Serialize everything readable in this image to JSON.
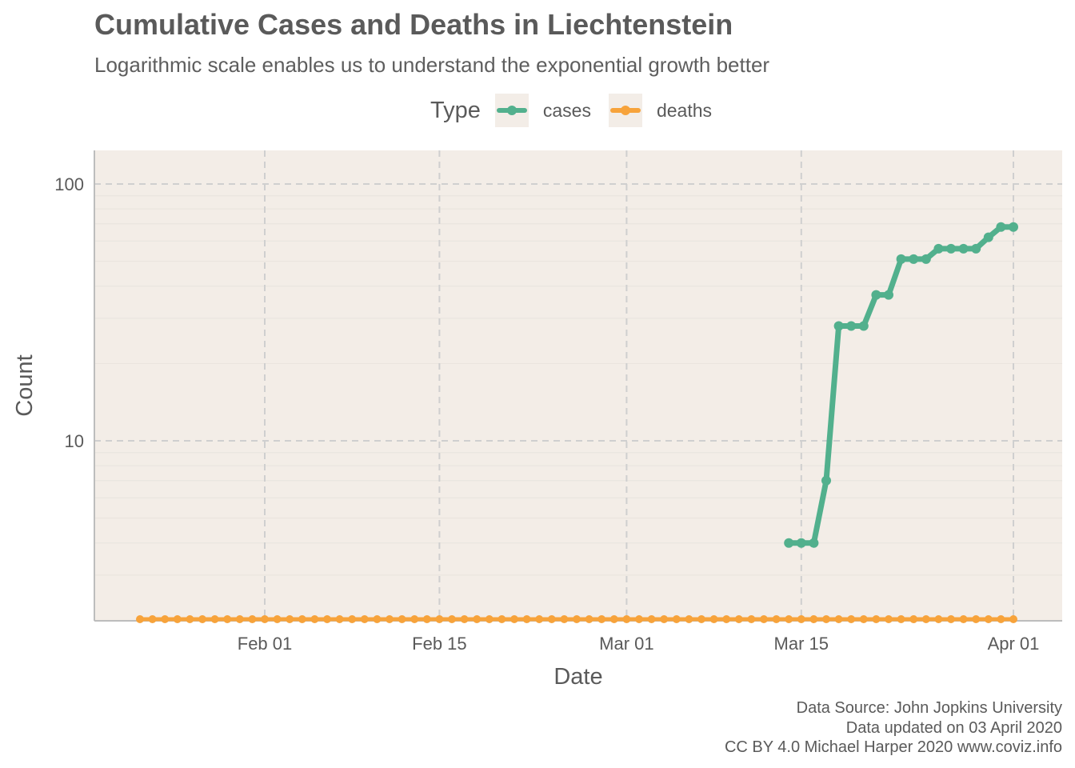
{
  "title": "Cumulative Cases and Deaths in Liechtenstein",
  "subtitle": "Logarithmic scale enables us to understand the exponential growth better",
  "legend": {
    "title": "Type",
    "items": [
      {
        "label": "cases",
        "color": "#52b08d"
      },
      {
        "label": "deaths",
        "color": "#f7a33b"
      }
    ]
  },
  "footer": {
    "line1": "Data Source: John Jopkins University",
    "line2": "Data updated on 03 April 2020",
    "line3": "CC BY 4.0 Michael Harper 2020 www.coviz.info"
  },
  "chart_data": {
    "type": "line",
    "title": "Cumulative Cases and Deaths in Liechtenstein",
    "xlabel": "Date",
    "ylabel": "Count",
    "yscale": "log10",
    "ylim": [
      1.5,
      135
    ],
    "xlim_dates": [
      "2020-01-18",
      "2020-04-03"
    ],
    "x_ticks": [
      {
        "date": "2020-02-01",
        "label": "Feb 01"
      },
      {
        "date": "2020-02-15",
        "label": "Feb 15"
      },
      {
        "date": "2020-03-01",
        "label": "Mar 01"
      },
      {
        "date": "2020-03-15",
        "label": "Mar 15"
      },
      {
        "date": "2020-04-01",
        "label": "Apr 01"
      }
    ],
    "y_ticks": [
      {
        "value": 10,
        "label": "10"
      },
      {
        "value": 100,
        "label": "100"
      }
    ],
    "grid": true,
    "background": "#f3ede7",
    "series": [
      {
        "name": "cases",
        "color": "#52b08d",
        "x": [
          "2020-03-14",
          "2020-03-15",
          "2020-03-16",
          "2020-03-17",
          "2020-03-18",
          "2020-03-19",
          "2020-03-20",
          "2020-03-21",
          "2020-03-22",
          "2020-03-23",
          "2020-03-24",
          "2020-03-25",
          "2020-03-26",
          "2020-03-27",
          "2020-03-28",
          "2020-03-29",
          "2020-03-30",
          "2020-03-31",
          "2020-04-01"
        ],
        "values": [
          4,
          4,
          4,
          7,
          28,
          28,
          28,
          37,
          37,
          51,
          51,
          51,
          56,
          56,
          56,
          56,
          62,
          68,
          68
        ]
      },
      {
        "name": "deaths",
        "color": "#f7a33b",
        "x_range": [
          "2020-01-22",
          "2020-04-01"
        ],
        "values_all": 0,
        "baseline": true
      }
    ]
  }
}
